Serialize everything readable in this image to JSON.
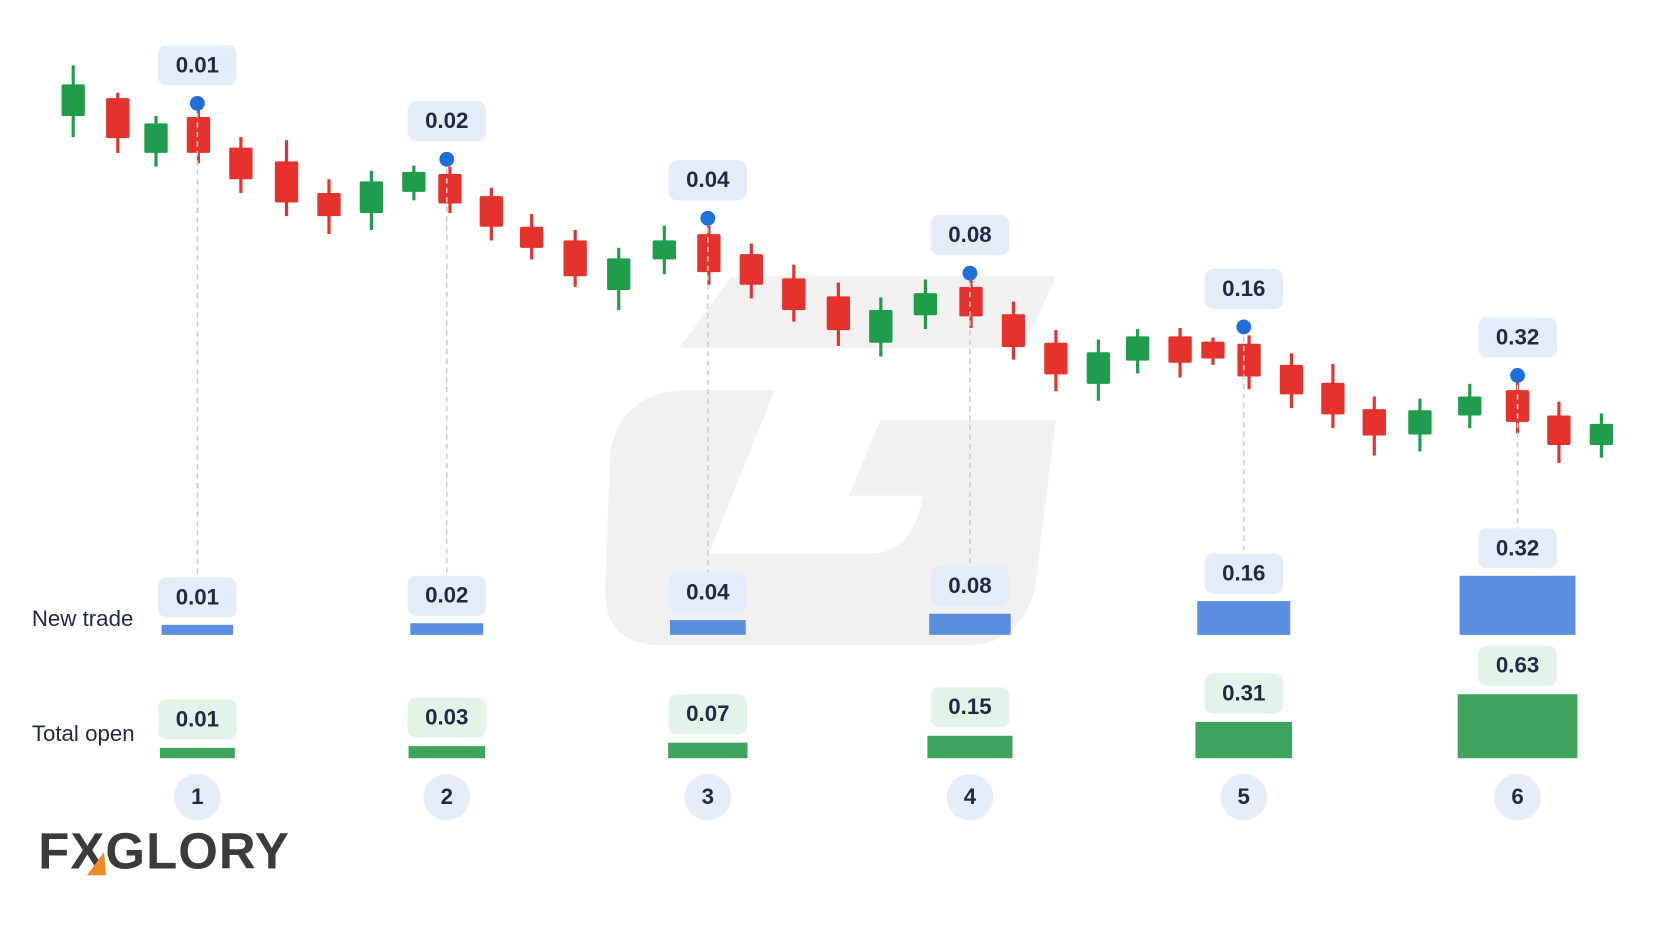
{
  "row_labels": {
    "new_trade": "New trade",
    "total_open": "Total open"
  },
  "steps": [
    {
      "number": 1,
      "new_trade": 0.01,
      "total_open": 0.01
    },
    {
      "number": 2,
      "new_trade": 0.02,
      "total_open": 0.03
    },
    {
      "number": 3,
      "new_trade": 0.04,
      "total_open": 0.07
    },
    {
      "number": 4,
      "new_trade": 0.08,
      "total_open": 0.15
    },
    {
      "number": 5,
      "new_trade": 0.16,
      "total_open": 0.31
    },
    {
      "number": 6,
      "new_trade": 0.32,
      "total_open": 0.63
    }
  ],
  "brand": "FXGLORY"
}
